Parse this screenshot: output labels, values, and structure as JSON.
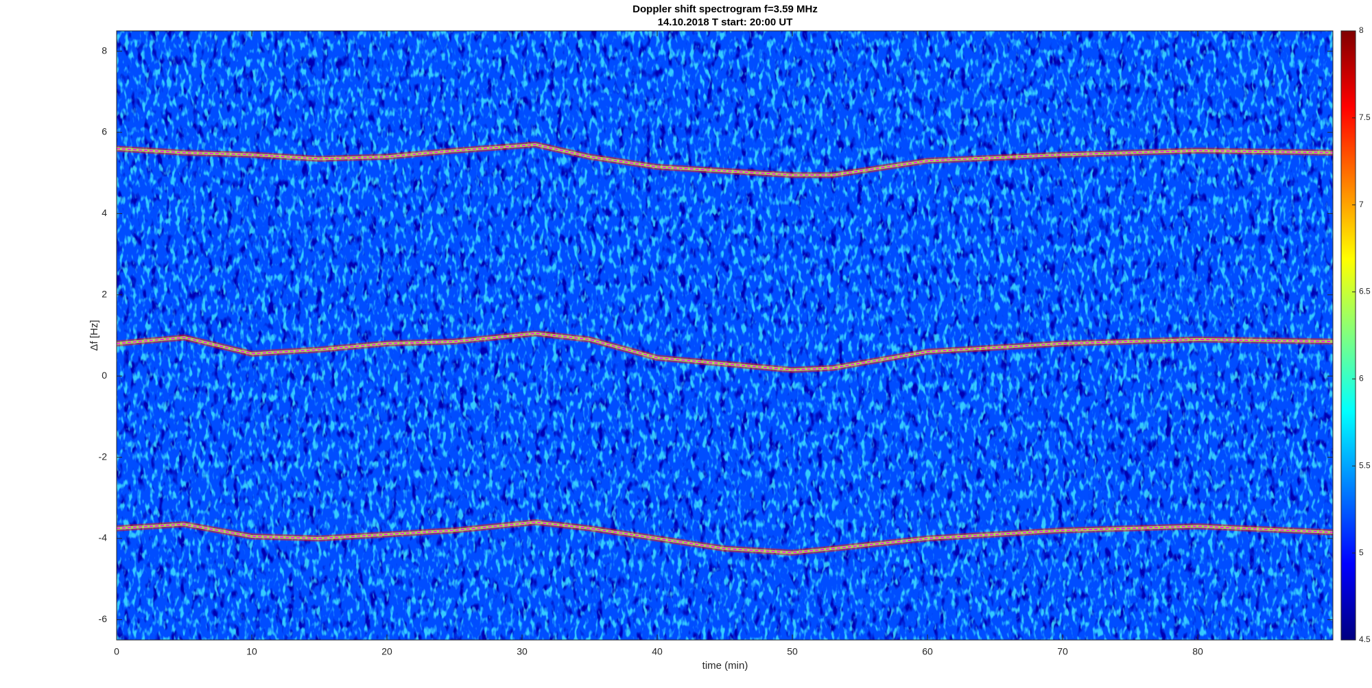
{
  "chart_data": {
    "type": "spectrogram",
    "title": "Doppler shift spectrogram f=3.59 MHz",
    "subtitle": "14.10.2018   T start: 20:00 UT",
    "x_label": "time (min)",
    "y_label": "Δf [Hz]",
    "xlim": [
      0,
      90
    ],
    "xticks": [
      0,
      10,
      20,
      30,
      40,
      50,
      60,
      70,
      80
    ],
    "ylim": [
      -6.5,
      8.5
    ],
    "yticks": [
      -6,
      -4,
      -2,
      0,
      2,
      4,
      6,
      8
    ],
    "colormap": "jet",
    "clim": [
      4.5,
      8
    ],
    "cticks": [
      4.5,
      5,
      5.5,
      6,
      6.5,
      7,
      7.5,
      8
    ],
    "series": [
      {
        "color": "#ff00ff",
        "x": [
          0,
          5,
          10,
          15,
          20,
          25,
          31,
          35,
          40,
          45,
          50,
          53,
          60,
          70,
          80,
          90
        ],
        "values": [
          5.6,
          5.5,
          5.45,
          5.35,
          5.4,
          5.55,
          5.7,
          5.4,
          5.15,
          5.05,
          4.95,
          4.95,
          5.3,
          5.45,
          5.55,
          5.5
        ]
      },
      {
        "color": "#ff00ff",
        "x": [
          0,
          5,
          10,
          15,
          20,
          25,
          31,
          35,
          40,
          45,
          50,
          53,
          60,
          70,
          80,
          90
        ],
        "values": [
          0.8,
          0.95,
          0.55,
          0.65,
          0.8,
          0.85,
          1.05,
          0.9,
          0.45,
          0.3,
          0.15,
          0.2,
          0.6,
          0.8,
          0.9,
          0.85
        ]
      },
      {
        "color": "#ff00ff",
        "x": [
          0,
          5,
          10,
          15,
          20,
          25,
          31,
          35,
          40,
          45,
          50,
          53,
          60,
          70,
          80,
          90
        ],
        "values": [
          -3.75,
          -3.65,
          -3.95,
          -4.0,
          -3.9,
          -3.8,
          -3.6,
          -3.75,
          -4.0,
          -4.25,
          -4.35,
          -4.25,
          -4.0,
          -3.8,
          -3.7,
          -3.85
        ]
      }
    ]
  }
}
